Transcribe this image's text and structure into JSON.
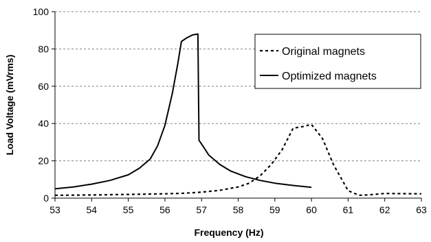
{
  "chart_data": {
    "type": "line",
    "xlabel": "Frequency (Hz)",
    "ylabel": "Load Voltage (mVrms)",
    "xlim": [
      53,
      63
    ],
    "ylim": [
      0,
      100
    ],
    "x_ticks": [
      "53",
      "54",
      "55",
      "56",
      "57",
      "58",
      "59",
      "60",
      "61",
      "62",
      "63"
    ],
    "y_ticks": [
      "0",
      "20",
      "40",
      "60",
      "80",
      "100"
    ],
    "grid": "horizontal dashed",
    "legend_position": "top-right",
    "colors": {
      "axis": "#000000",
      "grid": "#808080",
      "series": "#000000"
    },
    "series": [
      {
        "name": "Original magnets",
        "style": "dashed",
        "x": [
          53,
          54,
          55,
          56,
          56.5,
          57,
          57.5,
          58,
          58.3,
          58.6,
          58.9,
          59.2,
          59.5,
          59.8,
          60,
          60.3,
          60.6,
          61,
          61.3,
          61.6,
          62,
          62.5,
          63
        ],
        "y": [
          1.5,
          1.7,
          2,
          2.3,
          2.6,
          3.2,
          4.2,
          6,
          8,
          12,
          18,
          26,
          37.5,
          38.5,
          39.5,
          32,
          18,
          4,
          1.5,
          1.8,
          2.5,
          2.4,
          2.3
        ]
      },
      {
        "name": "Optimized magnets",
        "style": "solid",
        "x": [
          53,
          53.5,
          54,
          54.5,
          55,
          55.3,
          55.6,
          55.8,
          56,
          56.2,
          56.35,
          56.45,
          56.6,
          56.75,
          56.9,
          56.93,
          57,
          57.2,
          57.5,
          57.8,
          58.2,
          58.6,
          59,
          59.5,
          60
        ],
        "y": [
          5,
          6,
          7.5,
          9.5,
          12.5,
          16,
          21,
          28,
          39,
          56,
          72,
          84,
          86,
          87.5,
          88,
          31,
          29,
          23,
          18,
          14.5,
          11.5,
          9.5,
          8,
          6.8,
          5.8
        ]
      }
    ]
  }
}
